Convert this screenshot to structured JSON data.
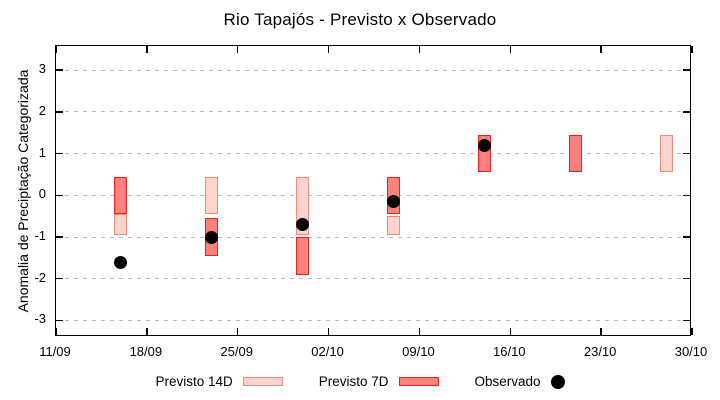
{
  "chart_data": {
    "type": "candlestick",
    "title": "Rio Tapajós - Previsto x Observado",
    "ylabel": "Anomalia de Preciptação Categorizada",
    "grid": "dashed-horizontal",
    "x_axis": {
      "tick_labels": [
        "11/09",
        "18/09",
        "25/09",
        "02/10",
        "09/10",
        "16/10",
        "23/10",
        "30/10"
      ],
      "tick_days": [
        0,
        7,
        14,
        21,
        28,
        35,
        42,
        49
      ],
      "span_days": 49
    },
    "y_axis": {
      "ticks": [
        3,
        2,
        1,
        0,
        -1,
        -2,
        -3
      ],
      "range_shown": [
        -3.5,
        3.6
      ]
    },
    "series": [
      {
        "name": "Previsto 14D",
        "style": "box-light",
        "boxes": [
          {
            "date": "16/09",
            "day": 5,
            "low": -0.95,
            "high": -0.45
          },
          {
            "date": "23/09",
            "day": 12,
            "low": -0.45,
            "high": 0.45
          },
          {
            "date": "30/09",
            "day": 19,
            "low": -0.95,
            "high": 0.45
          },
          {
            "date": "07/10",
            "day": 26,
            "low": -0.95,
            "high": -0.5
          },
          {
            "date": "28/10",
            "day": 47,
            "low": 0.55,
            "high": 1.45
          }
        ]
      },
      {
        "name": "Previsto 7D",
        "style": "box-dark",
        "boxes": [
          {
            "date": "16/09",
            "day": 5,
            "low": -0.45,
            "high": 0.45
          },
          {
            "date": "23/09",
            "day": 12,
            "low": -1.45,
            "high": -0.55
          },
          {
            "date": "30/09",
            "day": 19,
            "low": -1.9,
            "high": -1.0
          },
          {
            "date": "07/10",
            "day": 26,
            "low": -0.45,
            "high": 0.45
          },
          {
            "date": "14/10",
            "day": 33,
            "low": 0.55,
            "high": 1.45
          },
          {
            "date": "21/10",
            "day": 40,
            "low": 0.55,
            "high": 1.45
          }
        ]
      },
      {
        "name": "Observado",
        "style": "point-black",
        "points": [
          {
            "date": "16/09",
            "day": 5,
            "value": -1.6
          },
          {
            "date": "23/09",
            "day": 12,
            "value": -1.0
          },
          {
            "date": "30/09",
            "day": 19,
            "value": -0.7
          },
          {
            "date": "07/10",
            "day": 26,
            "value": -0.15
          },
          {
            "date": "14/10",
            "day": 33,
            "value": 1.2
          }
        ]
      }
    ],
    "legend": {
      "position": "bottom-center",
      "items": [
        {
          "label": "Previsto 14D",
          "swatch": "box-light"
        },
        {
          "label": "Previsto 7D",
          "swatch": "box-dark"
        },
        {
          "label": "Observado",
          "swatch": "dot-black"
        }
      ]
    },
    "colors": {
      "box_light_fill": "#fbd4ce",
      "box_light_border": "#ef8a7e",
      "box_dark_fill": "#f9837a",
      "box_dark_border": "#ee1c1c",
      "point": "#000000",
      "grid": "#b9b9b9",
      "axis": "#000000",
      "background": "#ffffff"
    }
  }
}
